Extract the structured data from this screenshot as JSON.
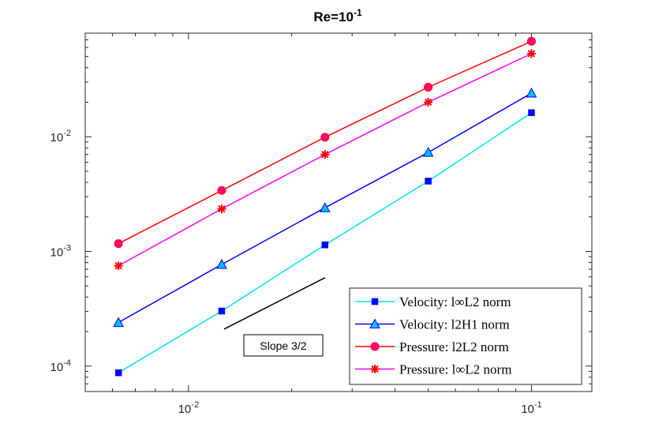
{
  "chart_data": {
    "type": "line",
    "scale": "loglog",
    "title": {
      "base": "Re=10",
      "exp": "-1"
    },
    "xlabel": "",
    "ylabel": "",
    "xlim": [
      0.005,
      0.15
    ],
    "ylim": [
      6e-05,
      0.08
    ],
    "xticks": [
      {
        "value": 0.01,
        "base": "10",
        "exp": "-2"
      },
      {
        "value": 0.1,
        "base": "10",
        "exp": "-1"
      }
    ],
    "yticks": [
      {
        "value": 0.0001,
        "base": "10",
        "exp": "-4"
      },
      {
        "value": 0.001,
        "base": "10",
        "exp": "-3"
      },
      {
        "value": 0.01,
        "base": "10",
        "exp": "-2"
      }
    ],
    "x": [
      0.00625,
      0.0125,
      0.025,
      0.05,
      0.1
    ],
    "series": [
      {
        "name": "Velocity: l∞L2 norm",
        "color": "#00e5e5",
        "marker": "square",
        "markerColor": "#0000ff",
        "values": [
          8.75e-05,
          0.000302,
          0.00114,
          0.0041,
          0.0162
        ]
      },
      {
        "name": "Velocity: l2H1 norm",
        "color": "#0000ff",
        "marker": "triangle",
        "markerColor": "#00bfff",
        "values": [
          0.00024,
          0.00077,
          0.0024,
          0.0073,
          0.024
        ]
      },
      {
        "name": "Pressure: l2L2 norm",
        "color": "#ff0000",
        "marker": "circle",
        "markerColor": "#ff0080",
        "values": [
          0.00117,
          0.0034,
          0.0099,
          0.027,
          0.068
        ]
      },
      {
        "name": "Pressure: l∞L2 norm",
        "color": "#ff00ff",
        "marker": "star",
        "markerColor": "#ff0000",
        "values": [
          0.00075,
          0.00235,
          0.007,
          0.02,
          0.053
        ]
      }
    ],
    "slope_line": {
      "x": [
        0.0127,
        0.025
      ],
      "y": [
        0.00021,
        0.00059
      ],
      "label": "Slope 3/2"
    },
    "legend": "bottom-right",
    "grid": false
  }
}
